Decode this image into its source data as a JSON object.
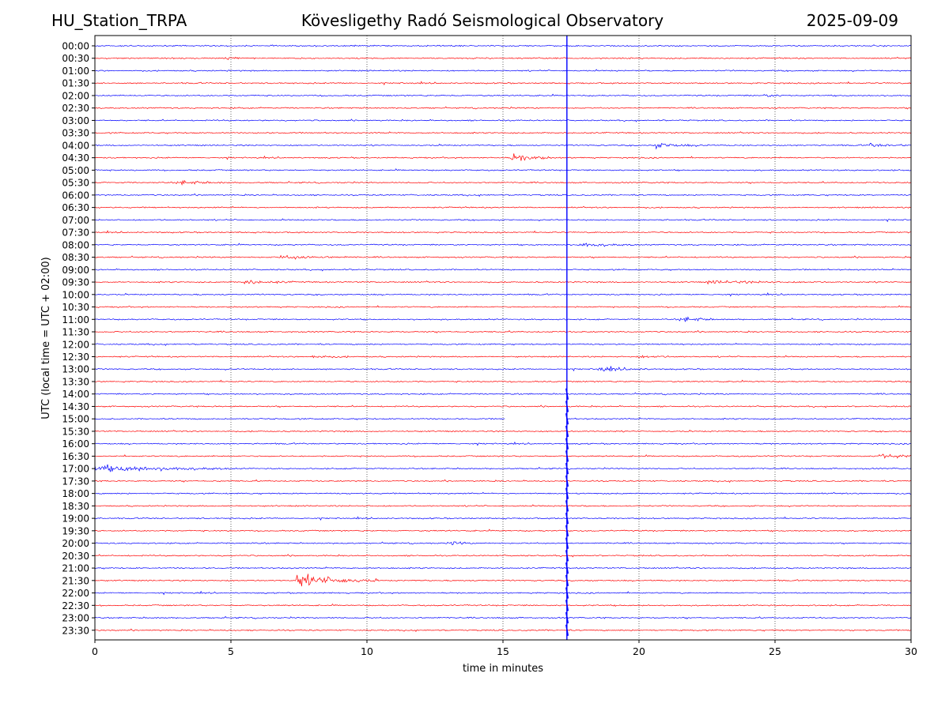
{
  "header": {
    "station": "HU_Station_TRPA",
    "observatory": "Kövesligethy Radó Seismological Observatory",
    "date": "2025-09-09"
  },
  "chart_data": {
    "type": "line",
    "title": "Kövesligethy Radó Seismological Observatory",
    "xlabel": "time in minutes",
    "ylabel": "UTC (local time = UTC + 02:00)",
    "xlim": [
      0,
      30
    ],
    "xticks": [
      0,
      5,
      10,
      15,
      20,
      25,
      30
    ],
    "grid": "vertical dotted at x ticks",
    "colors": {
      "even_rows": "#0000ff",
      "odd_rows": "#ff0000"
    },
    "rows": [
      "00:00",
      "00:30",
      "01:00",
      "01:30",
      "02:00",
      "02:30",
      "03:00",
      "03:30",
      "04:00",
      "04:30",
      "05:00",
      "05:30",
      "06:00",
      "06:30",
      "07:00",
      "07:30",
      "08:00",
      "08:30",
      "09:00",
      "09:30",
      "10:00",
      "10:30",
      "11:00",
      "11:30",
      "12:00",
      "12:30",
      "13:00",
      "13:30",
      "14:00",
      "14:30",
      "15:00",
      "15:30",
      "16:00",
      "16:30",
      "17:00",
      "17:30",
      "18:00",
      "18:30",
      "19:00",
      "19:30",
      "20:00",
      "20:30",
      "21:00",
      "21:30",
      "22:00",
      "22:30",
      "23:00",
      "23:30"
    ],
    "events": [
      {
        "row": "00:30",
        "start": 4.8,
        "duration": 1.0,
        "amplitude": 0.18
      },
      {
        "row": "02:00",
        "start": 24.6,
        "duration": 1.0,
        "amplitude": 0.22
      },
      {
        "row": "04:00",
        "start": 20.6,
        "duration": 2.0,
        "amplitude": 0.35
      },
      {
        "row": "04:00",
        "start": 28.5,
        "duration": 1.5,
        "amplitude": 0.22
      },
      {
        "row": "04:30",
        "start": 15.3,
        "duration": 1.5,
        "amplitude": 0.65
      },
      {
        "row": "05:30",
        "start": 3.0,
        "duration": 2.0,
        "amplitude": 0.3
      },
      {
        "row": "08:00",
        "start": 17.8,
        "duration": 2.0,
        "amplitude": 0.3
      },
      {
        "row": "08:30",
        "start": 6.8,
        "duration": 2.5,
        "amplitude": 0.35
      },
      {
        "row": "09:30",
        "start": 5.5,
        "duration": 2.0,
        "amplitude": 0.3
      },
      {
        "row": "09:30",
        "start": 22.5,
        "duration": 4.0,
        "amplitude": 0.2
      },
      {
        "row": "11:00",
        "start": 21.5,
        "duration": 1.5,
        "amplitude": 0.4
      },
      {
        "row": "12:30",
        "start": 8.0,
        "duration": 1.5,
        "amplitude": 0.2
      },
      {
        "row": "12:30",
        "start": 20.0,
        "duration": 1.5,
        "amplitude": 0.2
      },
      {
        "row": "13:00",
        "start": 18.5,
        "duration": 2.0,
        "amplitude": 0.3
      },
      {
        "row": "16:30",
        "start": 28.8,
        "duration": 1.2,
        "amplitude": 0.6
      },
      {
        "row": "17:00",
        "start": 0.0,
        "duration": 5.0,
        "amplitude": 0.55
      },
      {
        "row": "20:00",
        "start": 13.1,
        "duration": 0.8,
        "amplitude": 0.3
      },
      {
        "row": "21:30",
        "start": 7.4,
        "duration": 3.0,
        "amplitude": 1.0
      }
    ],
    "gaps": [
      {
        "row": "15:00",
        "start": 15.1,
        "end": 17.3
      }
    ],
    "spikes": [
      {
        "row_from": "14:00",
        "row_to": "23:30",
        "x": 17.35
      }
    ],
    "vertical_markers": [
      {
        "x": 17.35,
        "color": "#0000ff"
      }
    ]
  }
}
